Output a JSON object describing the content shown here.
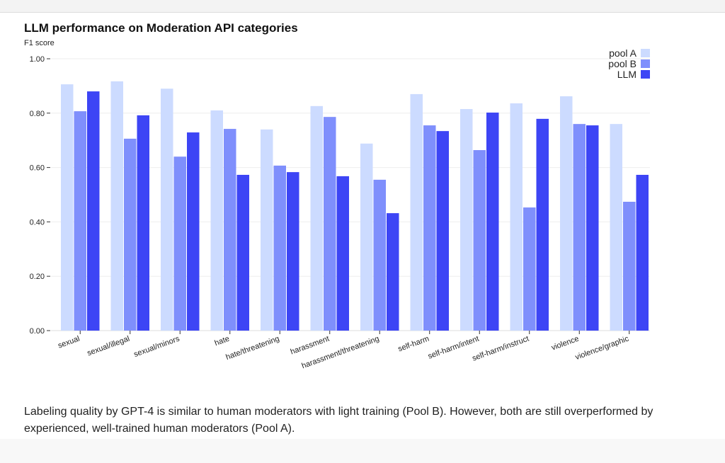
{
  "chart_data": {
    "type": "bar",
    "title": "LLM performance on Moderation API categories",
    "ylabel": "F1 score",
    "xlabel": "",
    "ylim": [
      0,
      1.0
    ],
    "yticks": [
      "0.00",
      "0.20",
      "0.40",
      "0.60",
      "0.80",
      "1.00"
    ],
    "grid": true,
    "legend": "top-right",
    "categories": [
      "sexual",
      "sexual/illegal",
      "sexual/minors",
      "hate",
      "hate/threatening",
      "harassment",
      "harassment/threatening",
      "self-harm",
      "self-harm/intent",
      "self-harm/instruct",
      "violence",
      "violence/graphic"
    ],
    "series": [
      {
        "name": "pool A",
        "color": "#ccdbff",
        "values": [
          0.906,
          0.917,
          0.89,
          0.81,
          0.74,
          0.826,
          0.688,
          0.87,
          0.815,
          0.836,
          0.862,
          0.76
        ]
      },
      {
        "name": "pool B",
        "color": "#7f8ffc",
        "values": [
          0.807,
          0.706,
          0.64,
          0.742,
          0.607,
          0.786,
          0.555,
          0.755,
          0.664,
          0.453,
          0.76,
          0.474
        ]
      },
      {
        "name": "LLM",
        "color": "#3d45f5",
        "values": [
          0.88,
          0.792,
          0.729,
          0.573,
          0.583,
          0.568,
          0.432,
          0.734,
          0.802,
          0.779,
          0.755,
          0.573
        ]
      }
    ]
  },
  "caption": "Labeling quality by GPT-4 is similar to human moderators with light training (Pool B). However, both are still overperformed by experienced, well-trained human moderators (Pool A)."
}
